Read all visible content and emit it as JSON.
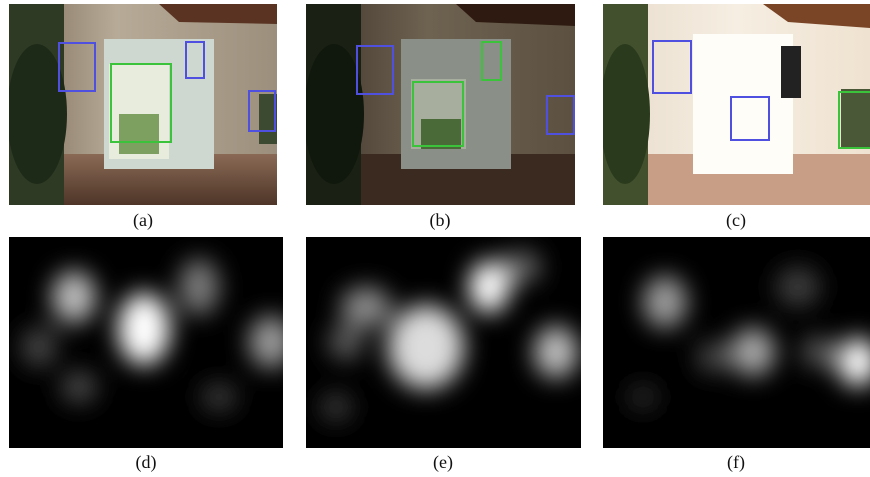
{
  "figure": {
    "panels": [
      {
        "id": "a",
        "caption": "(a)",
        "kind": "photo",
        "tone": "normal"
      },
      {
        "id": "b",
        "caption": "(b)",
        "kind": "photo",
        "tone": "dark"
      },
      {
        "id": "c",
        "caption": "(c)",
        "kind": "photo",
        "tone": "bright"
      },
      {
        "id": "d",
        "caption": "(d)",
        "kind": "saliency-map"
      },
      {
        "id": "e",
        "caption": "(e)",
        "kind": "saliency-map"
      },
      {
        "id": "f",
        "caption": "(f)",
        "kind": "saliency-map"
      }
    ],
    "box_colors": {
      "blue": "#5050e0",
      "green": "#3cc33c"
    }
  }
}
